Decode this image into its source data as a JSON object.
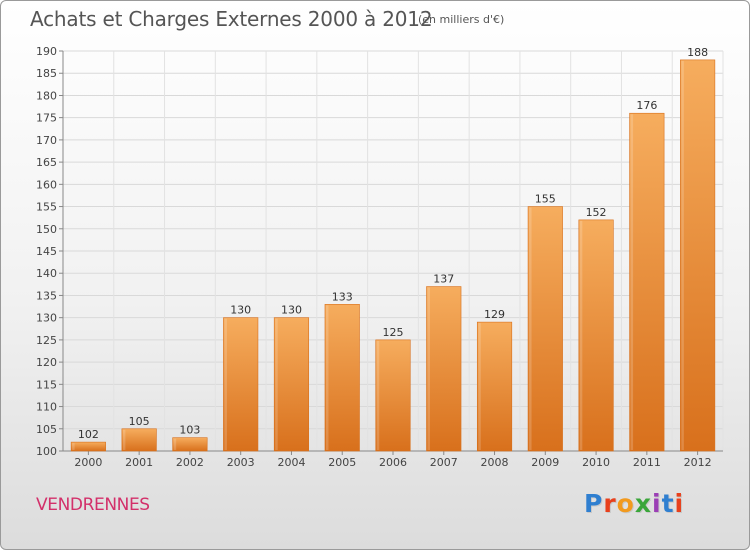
{
  "header": {
    "title": "Achats et Charges Externes 2000 à 2012",
    "unit": "(en milliers d'€)"
  },
  "footer": {
    "city": "VENDRENNES",
    "logo_letters": [
      "P",
      "r",
      "o",
      "x",
      "i",
      "t",
      "i"
    ],
    "logo_colors": [
      "#2f7fd0",
      "#e8401c",
      "#f29a1e",
      "#3aa63a",
      "#9b3fb5",
      "#2f7fd0",
      "#e8401c"
    ]
  },
  "chart_data": {
    "type": "bar",
    "categories": [
      "2000",
      "2001",
      "2002",
      "2003",
      "2004",
      "2005",
      "2006",
      "2007",
      "2008",
      "2009",
      "2010",
      "2011",
      "2012"
    ],
    "values": [
      102,
      105,
      103,
      130,
      130,
      133,
      125,
      137,
      129,
      155,
      152,
      176,
      188
    ],
    "ylim": [
      100,
      190
    ],
    "yticks": [
      100,
      105,
      110,
      115,
      120,
      125,
      130,
      135,
      140,
      145,
      150,
      155,
      160,
      165,
      170,
      175,
      180,
      185,
      190
    ],
    "grid": true,
    "bar_color": "#f0892e",
    "bar_color_light": "#f6ad5e",
    "bar_color_dark": "#d8701c"
  }
}
